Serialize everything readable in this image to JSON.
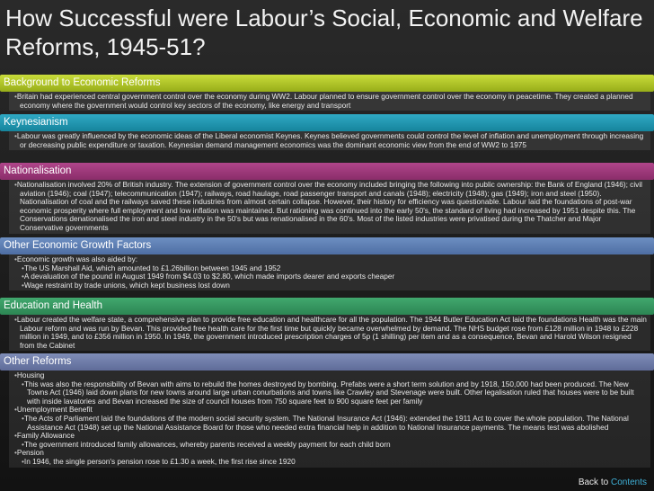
{
  "title": "How Successful were Labour’s Social, Economic and Welfare Reforms, 1945-51?",
  "sections": [
    {
      "heading": "Background to Economic Reforms",
      "items": [
        "Britain had experienced central government control over the economy during WW2. Labour planned to ensure government control over the economy in peacetime. They created a planned economy where the government would control key sectors of the economy, like energy and transport"
      ]
    },
    {
      "heading": "Keynesianism",
      "items": [
        "Labour was greatly influenced by the economic ideas of the Liberal economist Keynes. Keynes believed governments could control the level of inflation and unemployment through increasing or decreasing public expenditure or taxation. Keynesian demand management economics was the dominant economic view from the end of WW2 to 1975"
      ]
    },
    {
      "heading": "Nationalisation",
      "items": [
        "Nationalisation involved 20% of British industry. The extension of government control over the economy included bringing the following into public ownership: the Bank of England (1946); civil aviation (1946); coal (1947); telecommunication (1947); railways, road haulage, road passenger transport and canals (1948); electricity (1948); gas (1949); iron and steel (1950). Nationalisation of coal and the railways saved these industries from almost certain collapse. However, their history for efficiency was questionable. Labour laid the foundations of post-war economic prosperity where full employment and low inflation was maintained. But rationing was continued into the early 50's, the standard of living had increased by 1951 despite this. The Conservations denationalised the iron and steel industry in the 50's but was renationalised in the 60's. Most of the listed industries were privatised during the Thatcher and Major Conservative governments"
      ]
    },
    {
      "heading": "Other Economic Growth Factors",
      "items": [
        "Economic growth was also aided by:",
        "The US Marshall Aid, which amounted to £1.26billion between 1945 and 1952",
        "A devaluation of the pound in August 1949 from $4.03 to $2.80, which made imports dearer and exports cheaper",
        "Wage restraint by trade unions, which kept business lost down"
      ]
    },
    {
      "heading": "Education and Health",
      "items": [
        "Labour created the welfare state, a comprehensive plan to provide free education and healthcare for all the population. The 1944 Butler Education Act laid the foundations Health was the main Labour reform and was run by Bevan. This provided free health care for the first time but quickly became overwhelmed by demand. The NHS budget rose from £128 million in 1948 to £228 million in 1949, and to £356 million in 1950. In 1949, the government introduced prescription charges of 5p (1 shilling) per item and as a consequence, Bevan and Harold Wilson resigned from the Cabinet"
      ]
    },
    {
      "heading": "Other Reforms",
      "items": [
        "Housing",
        "This was also the responsibility of Bevan with aims to rebuild the homes destroyed by bombing. Prefabs were a short term solution and by 1918, 150,000 had been produced. The New Towns Act (1946) laid down plans for new towns around large urban conurbations and towns like Crawley and Stevenage were built. Other legalisation ruled that houses were to be built with inside lavatories and Bevan increased the size of council houses from 750 square feet to 900 square feet per family",
        "Unemployment Benefit",
        "The Acts of Parliament laid the foundations of the modern social security system. The National Insurance Act (1946): extended the 1911 Act to cover the whole population. The National Assistance Act (1948) set up the National Assistance Board for those who needed extra financial help in addition to National Insurance payments. The means test was abolished",
        "Family Allowance",
        "The government introduced family allowances, whereby parents received a weekly payment for each child born",
        "Pension",
        "In 1946, the single person's pension rose to £1.30 a week, the first rise since 1920"
      ]
    }
  ],
  "footer": {
    "back": "Back to",
    "link": "Contents"
  }
}
